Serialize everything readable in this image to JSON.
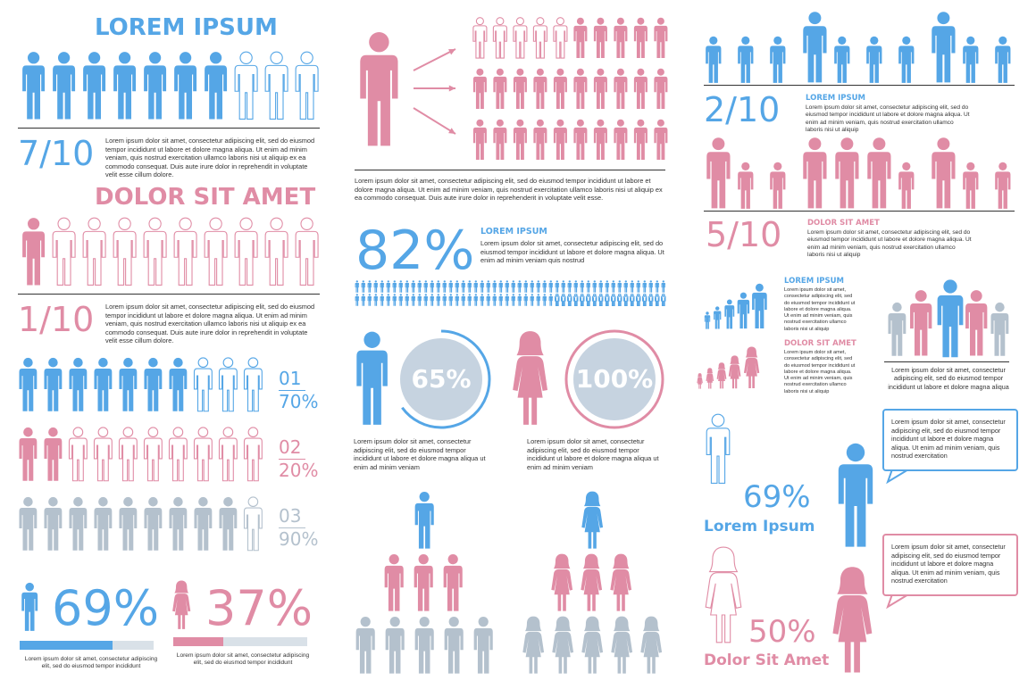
{
  "colors": {
    "blue": "#55a6e6",
    "pink": "#e08ca5",
    "gray": "#b4c1cd",
    "lightgray": "#d9e1e8",
    "dark": "#333333",
    "circlefill": "#c6d3e0"
  },
  "lorem_long": "Lorem ipsum dolor sit amet, consectetur adipiscing elit, sed do eiusmod tempor incididunt ut labore et dolore magna aliqua. Ut enim ad minim veniam, quis nostrud exercitation ullamco laboris nisi ut aliquip ex ea commodo consequat. Duis aute irure dolor in reprehendit in voluptate velit esse cillum dolore.",
  "lorem_mid": "Lorem ipsum dolor sit amet, consectetur adipiscing elit, sed do eiusmod tempor incididunt ut labore et dolore magna aliqua. Ut enim ad minim veniam, quis nostrud exercitation ullamco laboris nisi ut aliquip ex ea commodo consequat. Duis aute irure dolor in reprehenderit in voluptate velit esse.",
  "lorem_82": "Lorem ipsum dolor sit amet, consectetur adipiscing elit, sed do eiusmod tempor incididunt ut labore et dolore magna aliqua. Ut enim ad minim veniam quis nostrud",
  "lorem_circle": "Lorem ipsum dolor sit amet, consectetur adipiscing elit, sed do eiusmod tempor incididunt ut labore et dolore magna aliqua ut enim ad minim veniam",
  "lorem_short": "Lorem ipsum dolor sit amet, consectetur adipiscing elit, sed do eiusmod tempor incididunt",
  "lorem_right": "Lorem ipsum dolor sit amet, consectetur adipiscing elit, sed do eiusmod tempor incididunt ut labore et dolore magna aliqua. Ut enim ad minim veniam, quis nostrud exercitation ullamco laboris nisi ut aliquip",
  "lorem_tiny": "Lorem ipsum dolor sit amet, consectetur adipiscing elit, sed do eiusmod tempor incididunt ut labore et dolore magna aliqua. Ut enim ad minim veniam, quis nostrud exercitation ullamco laboris nisi ut aliquip",
  "lorem_group": "Lorem ipsum dolor sit amet, consectetur adipiscing elit, sed do eiusmod tempor incididunt ut labore et dolore magna aliqua. Ut enim ad minim veniam, quis nostrud exercitation ullamco laboris nisi ut aliquip",
  "lorem_magna": "Lorem ipsum dolor sit amet, consectetur adipiscing elit, sed do eiusmod tempor incididunt ut labore et dolore magna aliqua",
  "lorem_bubble": "Lorem ipsum dolor sit amet, consectetur adipiscing elit, sed do eiusmod tempor incididunt ut labore et dolore magna aliqua. Ut enim ad minim veniam, quis nostrud exercitation",
  "left": {
    "title1": "LOREM IPSUM",
    "frac1": "7/10",
    "title2": "DOLOR SIT AMET",
    "frac2": "1/10",
    "rows": [
      {
        "num": "01",
        "pct": "70%",
        "filled": 7,
        "total": 10
      },
      {
        "num": "02",
        "pct": "20%",
        "filled": 2,
        "total": 10
      },
      {
        "num": "03",
        "pct": "90%",
        "filled": 9,
        "total": 10
      }
    ],
    "bottom": [
      {
        "pct": "69%",
        "value": 69
      },
      {
        "pct": "37%",
        "value": 37
      }
    ]
  },
  "middle": {
    "pct": "82%",
    "pct_value": 82,
    "heading": "LOREM IPSUM",
    "circles": [
      {
        "pct": "65%",
        "value": 65
      },
      {
        "pct": "100%",
        "value": 100
      }
    ]
  },
  "right": {
    "frac1": "2/10",
    "heading1": "LOREM IPSUM",
    "frac2": "5/10",
    "heading2": "DOLOR SIT AMET",
    "grp_heading1": "LOREM IPSUM",
    "grp_heading2": "DOLOR SIT AMET",
    "male_pct": "69%",
    "male_value": 69,
    "male_label": "Lorem Ipsum",
    "female_pct": "50%",
    "female_value": 50,
    "female_label": "Dolor Sit Amet"
  }
}
